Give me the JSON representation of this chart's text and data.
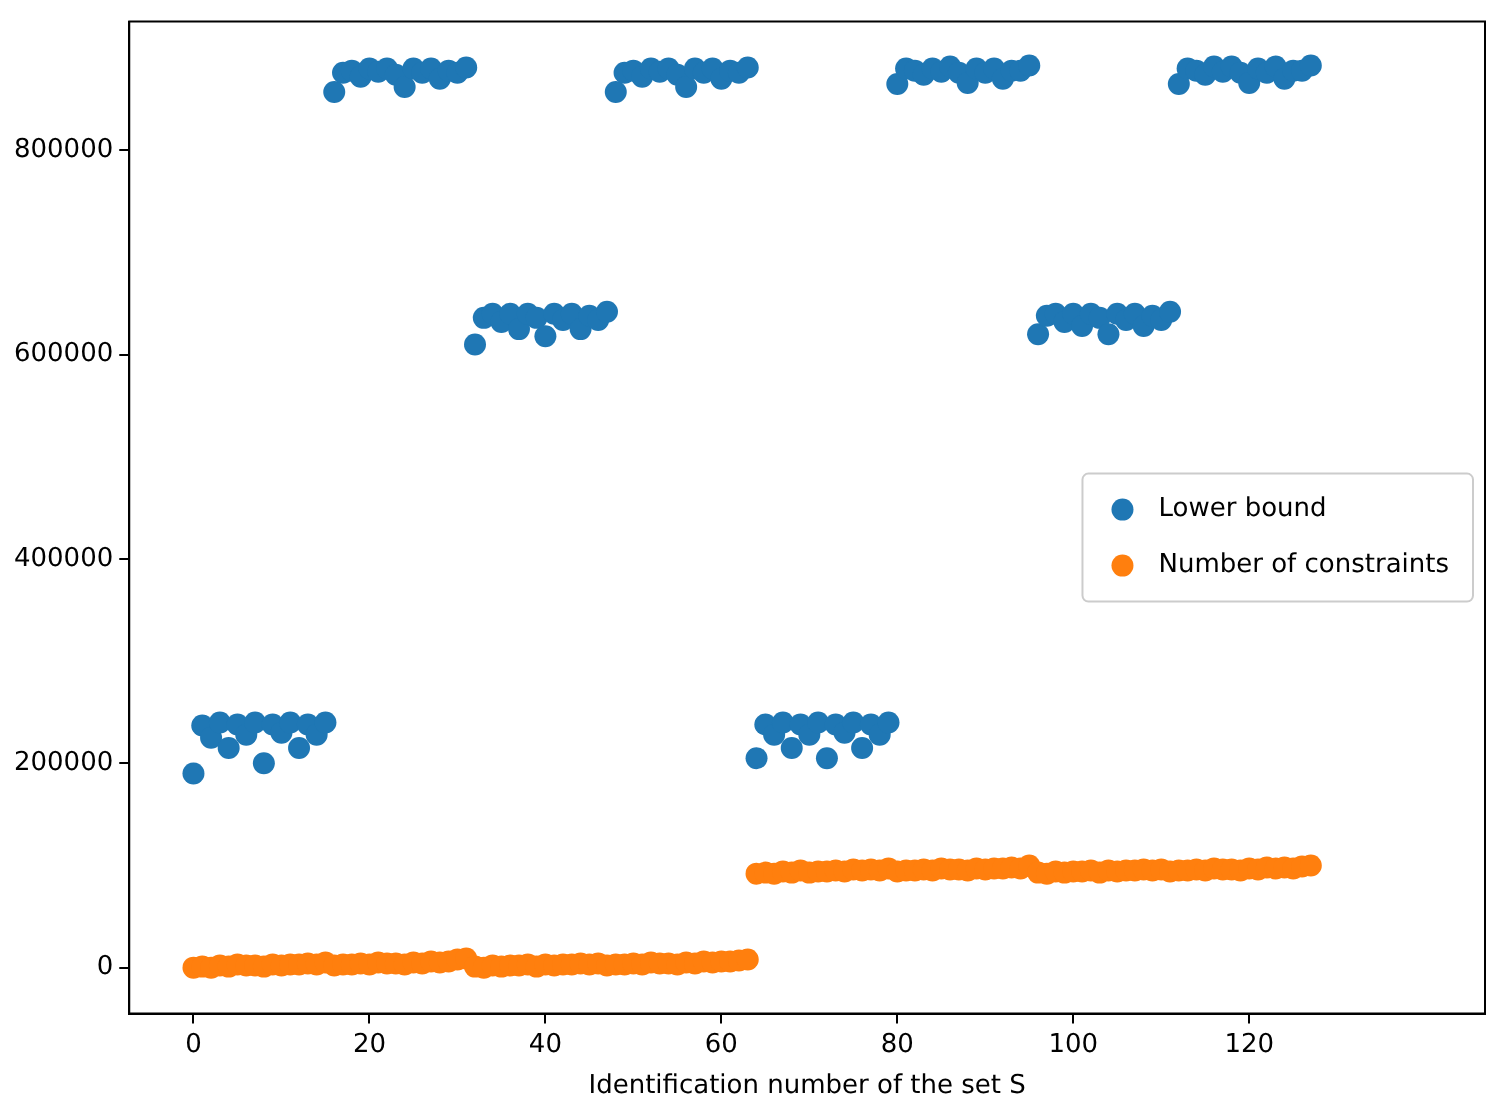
{
  "chart_data": {
    "type": "scatter",
    "xlabel": "Identification number of the set S",
    "x": [
      0,
      1,
      2,
      3,
      4,
      5,
      6,
      7,
      8,
      9,
      10,
      11,
      12,
      13,
      14,
      15,
      16,
      17,
      18,
      19,
      20,
      21,
      22,
      23,
      24,
      25,
      26,
      27,
      28,
      29,
      30,
      31,
      32,
      33,
      34,
      35,
      36,
      37,
      38,
      39,
      40,
      41,
      42,
      43,
      44,
      45,
      46,
      47,
      48,
      49,
      50,
      51,
      52,
      53,
      54,
      55,
      56,
      57,
      58,
      59,
      60,
      61,
      62,
      63,
      64,
      65,
      66,
      67,
      68,
      69,
      70,
      71,
      72,
      73,
      74,
      75,
      76,
      77,
      78,
      79,
      80,
      81,
      82,
      83,
      84,
      85,
      86,
      87,
      88,
      89,
      90,
      91,
      92,
      93,
      94,
      95,
      96,
      97,
      98,
      99,
      100,
      101,
      102,
      103,
      104,
      105,
      106,
      107,
      108,
      109,
      110,
      111,
      112,
      113,
      114,
      115,
      116,
      117,
      118,
      119,
      120,
      121,
      122,
      123,
      124,
      125,
      126,
      127
    ],
    "series": [
      {
        "name": "Lower bound",
        "color": "#1f77b4",
        "values": [
          190000,
          237000,
          225000,
          240000,
          215000,
          238000,
          228000,
          240000,
          200000,
          238000,
          230000,
          240000,
          215000,
          238000,
          228000,
          240000,
          857000,
          876000,
          878000,
          872000,
          880000,
          877000,
          880000,
          874000,
          862000,
          880000,
          876000,
          880000,
          870000,
          878000,
          876000,
          881000,
          610000,
          636000,
          640000,
          632000,
          640000,
          625000,
          640000,
          636000,
          618000,
          640000,
          634000,
          640000,
          625000,
          638000,
          634000,
          642000,
          857000,
          876000,
          878000,
          872000,
          880000,
          877000,
          880000,
          874000,
          862000,
          880000,
          876000,
          880000,
          870000,
          878000,
          876000,
          881000,
          205000,
          238000,
          228000,
          240000,
          215000,
          238000,
          228000,
          240000,
          205000,
          238000,
          230000,
          240000,
          215000,
          238000,
          228000,
          240000,
          865000,
          880000,
          878000,
          874000,
          880000,
          877000,
          882000,
          876000,
          866000,
          880000,
          876000,
          880000,
          870000,
          878000,
          878000,
          883000,
          620000,
          638000,
          640000,
          632000,
          640000,
          628000,
          640000,
          636000,
          620000,
          640000,
          634000,
          640000,
          628000,
          638000,
          634000,
          642000,
          865000,
          880000,
          878000,
          874000,
          882000,
          877000,
          882000,
          876000,
          866000,
          880000,
          876000,
          882000,
          870000,
          878000,
          878000,
          883000
        ]
      },
      {
        "name": "Number of constraints",
        "color": "#ff7f0e",
        "values": [
          0,
          1000,
          0,
          2000,
          1000,
          3000,
          2000,
          2000,
          1000,
          3000,
          2000,
          3000,
          3000,
          4000,
          3000,
          5000,
          2000,
          3000,
          3000,
          4000,
          3000,
          5000,
          4000,
          4000,
          3000,
          5000,
          4000,
          6000,
          5000,
          6000,
          8000,
          9000,
          1000,
          0,
          2000,
          1000,
          2000,
          2000,
          3000,
          1000,
          3000,
          2000,
          3000,
          3000,
          4000,
          3000,
          4000,
          2000,
          3000,
          3000,
          4000,
          3000,
          5000,
          4000,
          4000,
          3000,
          5000,
          4000,
          6000,
          5000,
          6000,
          6000,
          7000,
          8000,
          92000,
          93000,
          92000,
          94000,
          93000,
          95000,
          93000,
          94000,
          94000,
          95000,
          94000,
          96000,
          95000,
          96000,
          95000,
          97000,
          94000,
          95000,
          95000,
          96000,
          95000,
          97000,
          96000,
          96000,
          95000,
          97000,
          96000,
          97000,
          97000,
          98000,
          97000,
          100000,
          93000,
          92000,
          94000,
          93000,
          94000,
          94000,
          95000,
          93000,
          95000,
          94000,
          95000,
          95000,
          96000,
          95000,
          96000,
          94000,
          95000,
          95000,
          96000,
          95000,
          97000,
          96000,
          96000,
          95000,
          97000,
          96000,
          98000,
          97000,
          98000,
          97000,
          99000,
          100000
        ]
      }
    ],
    "xlim": [
      -7.3,
      146.8
    ],
    "xticks": [
      0,
      20,
      40,
      60,
      80,
      100,
      120
    ],
    "ylim": [
      -45000,
      926000
    ],
    "yticks": [
      0,
      200000,
      400000,
      600000,
      800000
    ],
    "marker": "circle",
    "legend": "right",
    "grid": false
  }
}
